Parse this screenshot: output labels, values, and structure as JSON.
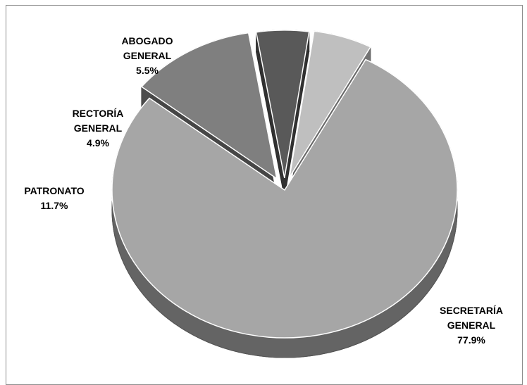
{
  "chart_data": {
    "type": "pie",
    "style": "3d-exploded",
    "slices": [
      {
        "name": "SECRETARÍA GENERAL",
        "label_lines": [
          "SECRETARÍA",
          "GENERAL",
          "77.9%"
        ],
        "value": 77.9,
        "color": "#a6a6a6"
      },
      {
        "name": "PATRONATO",
        "label_lines": [
          "PATRONATO",
          "11.7%"
        ],
        "value": 11.7,
        "color": "#7f7f7f"
      },
      {
        "name": "RECTORÍA GENERAL",
        "label_lines": [
          "RECTORÍA",
          "GENERAL",
          "4.9%"
        ],
        "value": 4.9,
        "color": "#595959"
      },
      {
        "name": "ABOGADO GENERAL",
        "label_lines": [
          "ABOGADO",
          "GENERAL",
          "5.5%"
        ],
        "value": 5.5,
        "color": "#bfbfbf"
      }
    ]
  }
}
